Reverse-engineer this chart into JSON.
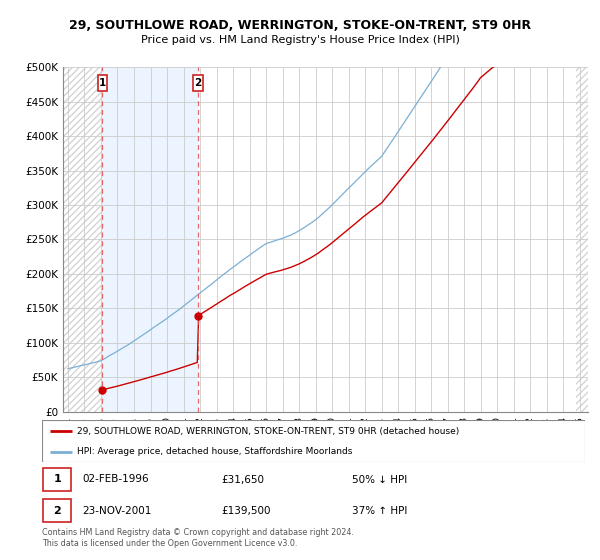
{
  "title_line1": "29, SOUTHLOWE ROAD, WERRINGTON, STOKE-ON-TRENT, ST9 0HR",
  "title_line2": "Price paid vs. HM Land Registry's House Price Index (HPI)",
  "sale1_date": "02-FEB-1996",
  "sale1_price": 31650,
  "sale1_year": 1996.083,
  "sale2_date": "23-NOV-2001",
  "sale2_price": 139500,
  "sale2_year": 2001.875,
  "legend_line1": "29, SOUTHLOWE ROAD, WERRINGTON, STOKE-ON-TRENT, ST9 0HR (detached house)",
  "legend_line2": "HPI: Average price, detached house, Staffordshire Moorlands",
  "footer": "Contains HM Land Registry data © Crown copyright and database right 2024.\nThis data is licensed under the Open Government Licence v3.0.",
  "price_color": "#cc0000",
  "hpi_color": "#7bafd4",
  "dashed_line_color": "#e05050",
  "ylim_min": 0,
  "ylim_max": 500000,
  "xlim_min": 1993.7,
  "xlim_max": 2025.5,
  "hatch_end": 1996.083,
  "blue_bg_end": 2001.875,
  "hatch_right_start": 2024.75,
  "yticks": [
    0,
    50000,
    100000,
    150000,
    200000,
    250000,
    300000,
    350000,
    400000,
    450000,
    500000
  ],
  "ytick_labels": [
    "£0",
    "£50K",
    "£100K",
    "£150K",
    "£200K",
    "£250K",
    "£300K",
    "£350K",
    "£400K",
    "£450K",
    "£500K"
  ],
  "xtick_years": [
    1994,
    1995,
    1996,
    1997,
    1998,
    1999,
    2000,
    2001,
    2002,
    2003,
    2004,
    2005,
    2006,
    2007,
    2008,
    2009,
    2010,
    2011,
    2012,
    2013,
    2014,
    2015,
    2016,
    2017,
    2018,
    2019,
    2020,
    2021,
    2022,
    2023,
    2024,
    2025
  ]
}
